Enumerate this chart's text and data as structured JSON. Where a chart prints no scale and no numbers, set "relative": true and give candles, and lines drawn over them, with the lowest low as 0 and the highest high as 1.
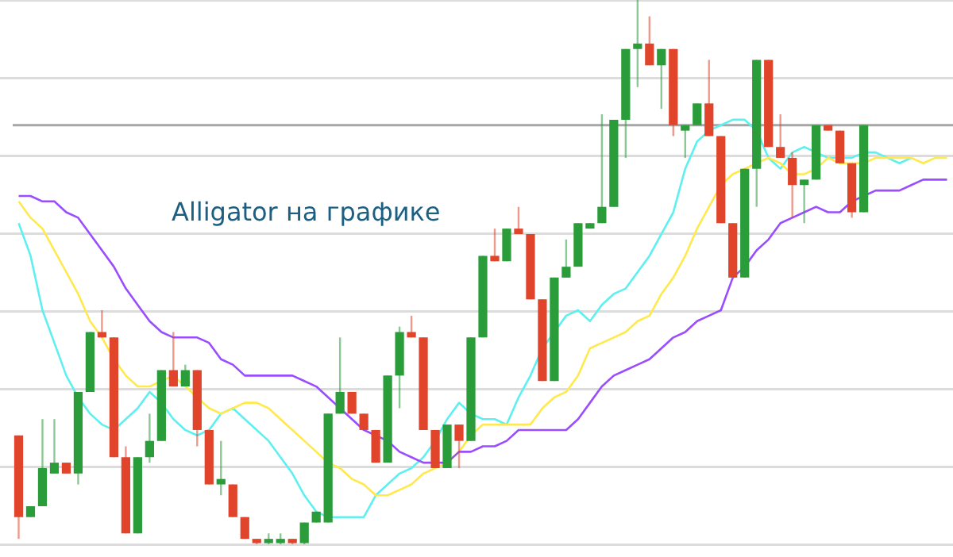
{
  "chart_data": {
    "type": "candlestick",
    "relative": true,
    "grid": "y",
    "marker": "none",
    "annotations": [
      "Alligator на графике"
    ],
    "categories": [
      null,
      null,
      null,
      null,
      null,
      null,
      null,
      null,
      null,
      null,
      null,
      null,
      null,
      null,
      null,
      null,
      null,
      null,
      null,
      null,
      null,
      null,
      null,
      null,
      null,
      null,
      null,
      null,
      null,
      null,
      null,
      null,
      null,
      null,
      null,
      null,
      null,
      null,
      null,
      null,
      null,
      null,
      null,
      null,
      null,
      null,
      null,
      null,
      null,
      null,
      null,
      null,
      null,
      null,
      null,
      null,
      null,
      null,
      null,
      null,
      null,
      null,
      null,
      null,
      null,
      null,
      null,
      null,
      null,
      null,
      null,
      null,
      null,
      null,
      null,
      null,
      null,
      null,
      null
    ],
    "ohlc": [
      [
        0.2,
        0.2,
        0.01,
        0.05
      ],
      [
        0.05,
        0.07,
        0.05,
        0.07
      ],
      [
        0.07,
        0.23,
        0.07,
        0.14
      ],
      [
        0.13,
        0.23,
        0.13,
        0.15
      ],
      [
        0.15,
        0.15,
        0.13,
        0.13
      ],
      [
        0.13,
        0.28,
        0.11,
        0.28
      ],
      [
        0.28,
        0.39,
        0.28,
        0.39
      ],
      [
        0.39,
        0.43,
        0.38,
        0.38
      ],
      [
        0.38,
        0.38,
        0.16,
        0.16
      ],
      [
        0.16,
        0.18,
        0.02,
        0.02
      ],
      [
        0.02,
        0.16,
        0.02,
        0.16
      ],
      [
        0.16,
        0.24,
        0.15,
        0.19
      ],
      [
        0.19,
        0.32,
        0.19,
        0.32
      ],
      [
        0.32,
        0.39,
        0.29,
        0.29
      ],
      [
        0.29,
        0.33,
        0.29,
        0.32
      ],
      [
        0.32,
        0.32,
        0.18,
        0.21
      ],
      [
        0.21,
        0.21,
        0.11,
        0.11
      ],
      [
        0.11,
        0.19,
        0.09,
        0.12
      ],
      [
        0.11,
        0.11,
        0.05,
        0.05
      ],
      [
        0.05,
        0.05,
        0.01,
        0.01
      ],
      [
        0.01,
        0.01,
        0,
        0
      ],
      [
        0,
        0.02,
        0,
        0.01
      ],
      [
        0,
        0.02,
        0,
        0.01
      ],
      [
        0.01,
        0.01,
        0,
        0
      ],
      [
        0,
        0.04,
        0,
        0.04
      ],
      [
        0.04,
        0.06,
        0.04,
        0.06
      ],
      [
        0.04,
        0.24,
        0.04,
        0.24
      ],
      [
        0.24,
        0.38,
        0.24,
        0.28
      ],
      [
        0.28,
        0.28,
        0.24,
        0.24
      ],
      [
        0.24,
        0.24,
        0.21,
        0.21
      ],
      [
        0.21,
        0.21,
        0.15,
        0.15
      ],
      [
        0.15,
        0.31,
        0.15,
        0.31
      ],
      [
        0.31,
        0.4,
        0.25,
        0.39
      ],
      [
        0.39,
        0.42,
        0.38,
        0.38
      ],
      [
        0.38,
        0.38,
        0.21,
        0.21
      ],
      [
        0.21,
        0.21,
        0.14,
        0.14
      ],
      [
        0.14,
        0.22,
        0.14,
        0.22
      ],
      [
        0.22,
        0.22,
        0.14,
        0.19
      ],
      [
        0.19,
        0.38,
        0.19,
        0.38
      ],
      [
        0.38,
        0.53,
        0.38,
        0.53
      ],
      [
        0.53,
        0.58,
        0.52,
        0.52
      ],
      [
        0.52,
        0.58,
        0.52,
        0.58
      ],
      [
        0.58,
        0.62,
        0.57,
        0.57
      ],
      [
        0.57,
        0.57,
        0.45,
        0.45
      ],
      [
        0.45,
        0.45,
        0.3,
        0.3
      ],
      [
        0.3,
        0.49,
        0.3,
        0.49
      ],
      [
        0.49,
        0.56,
        0.49,
        0.51
      ],
      [
        0.51,
        0.59,
        0.51,
        0.59
      ],
      [
        0.58,
        0.59,
        0.58,
        0.59
      ],
      [
        0.59,
        0.79,
        0.59,
        0.62
      ],
      [
        0.62,
        0.78,
        0.62,
        0.78
      ],
      [
        0.78,
        0.91,
        0.71,
        0.91
      ],
      [
        0.91,
        1,
        0.84,
        0.92
      ],
      [
        0.92,
        0.97,
        0.88,
        0.88
      ],
      [
        0.88,
        0.91,
        0.8,
        0.91
      ],
      [
        0.91,
        0.91,
        0.75,
        0.77
      ],
      [
        0.76,
        0.77,
        0.71,
        0.77
      ],
      [
        0.77,
        0.81,
        0.77,
        0.81
      ],
      [
        0.81,
        0.89,
        0.75,
        0.75
      ],
      [
        0.75,
        0.75,
        0.59,
        0.59
      ],
      [
        0.59,
        0.59,
        0.49,
        0.49
      ],
      [
        0.49,
        0.69,
        0.49,
        0.69
      ],
      [
        0.69,
        0.89,
        0.62,
        0.89
      ],
      [
        0.89,
        0.89,
        0.73,
        0.73
      ],
      [
        0.73,
        0.79,
        0.71,
        0.71
      ],
      [
        0.71,
        0.72,
        0.6,
        0.66
      ],
      [
        0.66,
        0.67,
        0.59,
        0.67
      ],
      [
        0.67,
        0.77,
        0.67,
        0.77
      ],
      [
        0.77,
        0.77,
        0.76,
        0.76
      ],
      [
        0.76,
        0.76,
        0.7,
        0.7
      ],
      [
        0.7,
        0.7,
        0.6,
        0.61
      ],
      [
        0.61,
        0.77,
        0.61,
        0.77
      ],
      null,
      null,
      null,
      null,
      null,
      null,
      null
    ],
    "colors": [
      "#e0452c",
      "#2a9d3a",
      "#2a9d3a",
      "#2a9d3a",
      "#e0452c",
      "#2a9d3a",
      "#2a9d3a",
      "#e0452c",
      "#e0452c",
      "#e0452c",
      "#2a9d3a",
      "#2a9d3a",
      "#2a9d3a",
      "#e0452c",
      "#2a9d3a",
      "#e0452c",
      "#e0452c",
      "#2a9d3a",
      "#e0452c",
      "#e0452c",
      "#e0452c",
      "#2a9d3a",
      "#2a9d3a",
      "#e0452c",
      "#2a9d3a",
      "#2a9d3a",
      "#2a9d3a",
      "#2a9d3a",
      "#e0452c",
      "#e0452c",
      "#e0452c",
      "#2a9d3a",
      "#2a9d3a",
      "#e0452c",
      "#e0452c",
      "#e0452c",
      "#2a9d3a",
      "#e0452c",
      "#2a9d3a",
      "#2a9d3a",
      "#e0452c",
      "#2a9d3a",
      "#e0452c",
      "#e0452c",
      "#e0452c",
      "#2a9d3a",
      "#2a9d3a",
      "#2a9d3a",
      "#2a9d3a",
      "#2a9d3a",
      "#2a9d3a",
      "#2a9d3a",
      "#2a9d3a",
      "#e0452c",
      "#2a9d3a",
      "#e0452c",
      "#2a9d3a",
      "#2a9d3a",
      "#e0452c",
      "#e0452c",
      "#e0452c",
      "#2a9d3a",
      "#2a9d3a",
      "#e0452c",
      "#e0452c",
      "#e0452c",
      "#2a9d3a",
      "#2a9d3a",
      "#e0452c",
      "#e0452c",
      "#e0452c",
      "#2a9d3a",
      null,
      null,
      null,
      null,
      null,
      null,
      null
    ],
    "series": [
      {
        "type": "line",
        "color": "#9a4dff",
        "values": [
          0.64,
          0.64,
          0.63,
          0.63,
          0.61,
          0.6,
          0.57,
          0.54,
          0.51,
          0.47,
          0.44,
          0.41,
          0.39,
          0.38,
          0.38,
          0.38,
          0.37,
          0.34,
          0.33,
          0.31,
          0.31,
          0.31,
          0.31,
          0.31,
          0.3,
          0.29,
          0.27,
          0.25,
          0.23,
          0.21,
          0.2,
          0.19,
          0.17,
          0.16,
          0.15,
          0.15,
          0.15,
          0.17,
          0.17,
          0.18,
          0.18,
          0.19,
          0.21,
          0.21,
          0.21,
          0.21,
          0.21,
          0.23,
          0.26,
          0.29,
          0.31,
          0.32,
          0.33,
          0.34,
          0.36,
          0.38,
          0.39,
          0.41,
          0.42,
          0.43,
          0.49,
          0.51,
          0.54,
          0.56,
          0.59,
          0.6,
          0.61,
          0.62,
          0.61,
          0.61,
          0.63,
          0.64,
          0.65,
          0.65,
          0.65,
          0.66,
          0.67,
          0.67,
          0.67
        ]
      },
      {
        "type": "line",
        "color": "#ffe94d",
        "values": [
          0.63,
          0.6,
          0.58,
          0.54,
          0.5,
          0.46,
          0.41,
          0.38,
          0.34,
          0.31,
          0.29,
          0.29,
          0.3,
          0.31,
          0.29,
          0.27,
          0.25,
          0.24,
          0.25,
          0.26,
          0.26,
          0.25,
          0.23,
          0.21,
          0.19,
          0.17,
          0.15,
          0.14,
          0.12,
          0.11,
          0.09,
          0.09,
          0.1,
          0.11,
          0.13,
          0.14,
          0.15,
          0.17,
          0.2,
          0.22,
          0.22,
          0.22,
          0.22,
          0.22,
          0.25,
          0.27,
          0.28,
          0.31,
          0.36,
          0.37,
          0.38,
          0.39,
          0.41,
          0.42,
          0.46,
          0.49,
          0.53,
          0.58,
          0.62,
          0.66,
          0.68,
          0.69,
          0.7,
          0.71,
          0.7,
          0.68,
          0.68,
          0.69,
          0.71,
          0.7,
          0.7,
          0.7,
          0.71,
          0.71,
          0.71,
          0.71,
          0.7,
          0.71,
          0.71
        ]
      },
      {
        "type": "line",
        "color": "#5ef0f0",
        "values": [
          0.59,
          0.53,
          0.43,
          0.37,
          0.31,
          0.27,
          0.24,
          0.22,
          0.21,
          0.23,
          0.25,
          0.28,
          0.26,
          0.23,
          0.21,
          0.2,
          0.21,
          0.24,
          0.25,
          0.23,
          0.21,
          0.19,
          0.16,
          0.13,
          0.09,
          0.06,
          0.05,
          0.05,
          0.05,
          0.05,
          0.09,
          0.11,
          0.13,
          0.14,
          0.16,
          0.19,
          0.23,
          0.26,
          0.24,
          0.23,
          0.23,
          0.22,
          0.27,
          0.31,
          0.36,
          0.39,
          0.42,
          0.43,
          0.41,
          0.44,
          0.46,
          0.47,
          0.5,
          0.53,
          0.57,
          0.61,
          0.69,
          0.74,
          0.76,
          0.77,
          0.78,
          0.78,
          0.76,
          0.71,
          0.69,
          0.72,
          0.73,
          0.72,
          0.71,
          0.71,
          0.71,
          0.72,
          0.72,
          0.71,
          0.7,
          0.71,
          null,
          null,
          null
        ]
      }
    ],
    "ref_lines": [
      {
        "axis": "y",
        "value": 0.77,
        "color": "#a6a6a6"
      }
    ]
  }
}
